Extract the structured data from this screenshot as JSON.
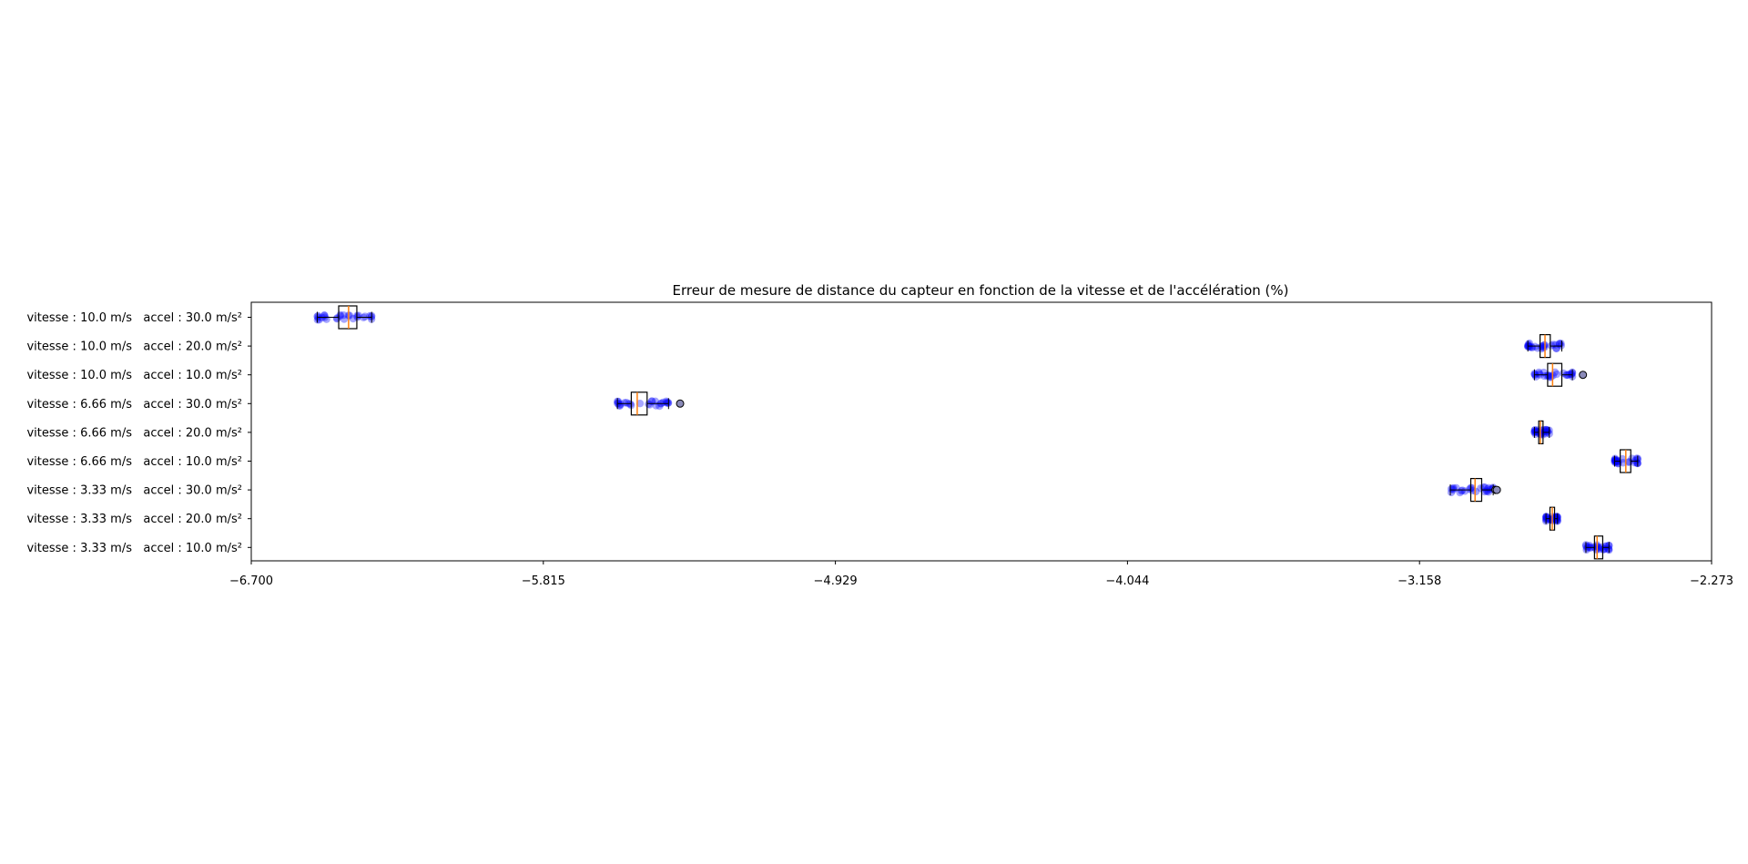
{
  "chart_data": {
    "type": "boxplot",
    "orientation": "horizontal",
    "title": "Erreur de mesure de distance du capteur en fonction de la vitesse et de l'accélération (%)",
    "xlabel": "",
    "ylabel": "",
    "xlim": [
      -6.7,
      -2.273
    ],
    "xticks": [
      "−6.700",
      "−5.815",
      "−4.929",
      "−4.044",
      "−3.158",
      "−2.273"
    ],
    "grid": false,
    "colors": {
      "box": "#000000",
      "median": "#ff7f0e",
      "points": "#0000ff",
      "flier_edge": "#000000",
      "flier_face": "#8a8ab8"
    },
    "categories": [
      "vitesse : 10.0 m/s   accel : 30.0 m/s²",
      "vitesse : 10.0 m/s   accel : 20.0 m/s²",
      "vitesse : 10.0 m/s   accel : 10.0 m/s²",
      "vitesse : 6.66 m/s   accel : 30.0 m/s²",
      "vitesse : 6.66 m/s   accel : 20.0 m/s²",
      "vitesse : 6.66 m/s   accel : 10.0 m/s²",
      "vitesse : 3.33 m/s   accel : 30.0 m/s²",
      "vitesse : 3.33 m/s   accel : 20.0 m/s²",
      "vitesse : 3.33 m/s   accel : 10.0 m/s²"
    ],
    "boxes": [
      {
        "whislo": -6.5,
        "q1": -6.435,
        "med": -6.405,
        "q3": -6.38,
        "whishi": -6.335,
        "fliers": []
      },
      {
        "whislo": -2.83,
        "q1": -2.793,
        "med": -2.778,
        "q3": -2.762,
        "whishi": -2.727,
        "fliers": []
      },
      {
        "whislo": -2.81,
        "q1": -2.77,
        "med": -2.755,
        "q3": -2.727,
        "whishi": -2.695,
        "fliers": [
          -2.663
        ]
      },
      {
        "whislo": -5.59,
        "q1": -5.548,
        "med": -5.53,
        "q3": -5.5,
        "whishi": -5.435,
        "fliers": [
          -5.4
        ]
      },
      {
        "whislo": -2.81,
        "q1": -2.797,
        "med": -2.792,
        "q3": -2.784,
        "whishi": -2.765,
        "fliers": []
      },
      {
        "whislo": -2.567,
        "q1": -2.55,
        "med": -2.533,
        "q3": -2.518,
        "whishi": -2.497,
        "fliers": []
      },
      {
        "whislo": -3.065,
        "q1": -3.003,
        "med": -2.99,
        "q3": -2.97,
        "whishi": -2.935,
        "fliers": [
          -2.928,
          -2.924
        ]
      },
      {
        "whislo": -2.775,
        "q1": -2.763,
        "med": -2.756,
        "q3": -2.749,
        "whishi": -2.74,
        "fliers": []
      },
      {
        "whislo": -2.654,
        "q1": -2.628,
        "med": -2.62,
        "q3": -2.603,
        "whishi": -2.584,
        "fliers": []
      }
    ]
  }
}
